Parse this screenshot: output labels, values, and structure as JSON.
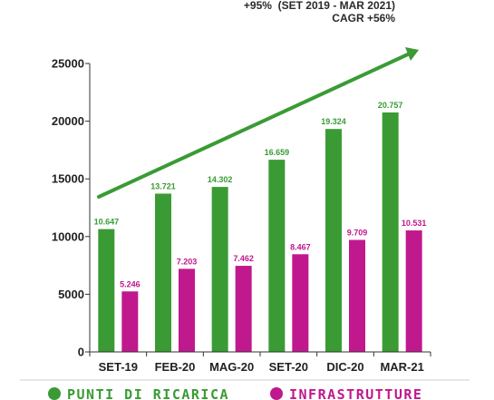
{
  "annotation": {
    "growth_line": "+95%  (SET 2019 - MAR 2021)",
    "cagr_line": "CAGR +56%"
  },
  "colors": {
    "punti": "#3a9b35",
    "infra": "#c0188d",
    "arrow": "#3a9b35"
  },
  "chart_data": {
    "type": "bar",
    "categories": [
      "SET-19",
      "FEB-20",
      "MAG-20",
      "SET-20",
      "DIC-20",
      "MAR-21"
    ],
    "series": [
      {
        "name": "PUNTI DI RICARICA",
        "values": [
          10647,
          13721,
          14302,
          16659,
          19324,
          20757
        ],
        "labels": [
          "10.647",
          "13.721",
          "14.302",
          "16.659",
          "19.324",
          "20.757"
        ]
      },
      {
        "name": "INFRASTRUTTURE",
        "values": [
          5246,
          7203,
          7462,
          8467,
          9709,
          10531
        ],
        "labels": [
          "5.246",
          "7.203",
          "7.462",
          "8.467",
          "9.709",
          "10.531"
        ]
      }
    ],
    "yticks": [
      "0",
      "5000",
      "10000",
      "15000",
      "20000",
      "25000"
    ],
    "ylim": [
      0,
      25000
    ],
    "grid": false,
    "legend_position": "bottom"
  }
}
